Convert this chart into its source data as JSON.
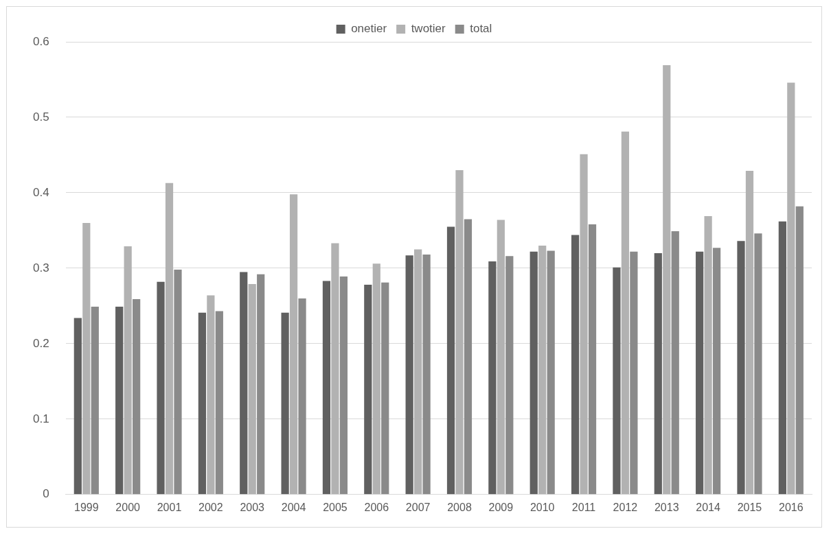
{
  "chart_data": {
    "type": "bar",
    "categories": [
      "1999",
      "2000",
      "2001",
      "2002",
      "2003",
      "2004",
      "2005",
      "2006",
      "2007",
      "2008",
      "2009",
      "2010",
      "2011",
      "2012",
      "2013",
      "2014",
      "2015",
      "2016"
    ],
    "series": [
      {
        "name": "onetier",
        "color": "#606060",
        "values": [
          0.234,
          0.249,
          0.282,
          0.241,
          0.295,
          0.241,
          0.283,
          0.278,
          0.317,
          0.355,
          0.309,
          0.322,
          0.344,
          0.301,
          0.32,
          0.322,
          0.336,
          0.362
        ]
      },
      {
        "name": "twotier",
        "color": "#b2b2b2",
        "values": [
          0.36,
          0.329,
          0.413,
          0.264,
          0.279,
          0.398,
          0.333,
          0.306,
          0.325,
          0.43,
          0.364,
          0.33,
          0.451,
          0.481,
          0.569,
          0.369,
          0.429,
          0.546
        ]
      },
      {
        "name": "total",
        "color": "#8a8a8a",
        "values": [
          0.249,
          0.259,
          0.298,
          0.243,
          0.292,
          0.26,
          0.289,
          0.281,
          0.318,
          0.365,
          0.316,
          0.323,
          0.358,
          0.322,
          0.349,
          0.327,
          0.346,
          0.382
        ]
      }
    ],
    "ylim": [
      0,
      0.6
    ],
    "yticks": [
      0,
      0.1,
      0.2,
      0.3,
      0.4,
      0.5,
      0.6
    ],
    "grid": "y",
    "legend": "top"
  }
}
